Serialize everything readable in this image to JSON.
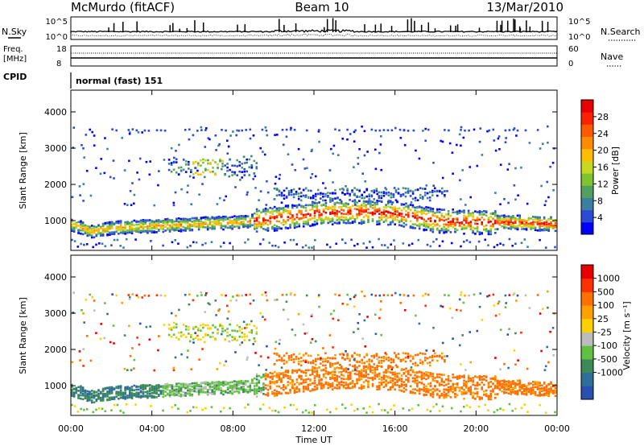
{
  "header": {
    "station": "McMurdo (fitACF)",
    "beam": "Beam 10",
    "date": "13/Mar/2010"
  },
  "noise_panel": {
    "left_label": "N.Sky",
    "right_label": "N.Search",
    "y_ticks": [
      "10^5",
      "10^0"
    ],
    "right_ticks": [
      "10^5",
      "10^0"
    ]
  },
  "freq_panel": {
    "left_label_line1": "Freq.",
    "left_label_line2": "[MHz]",
    "left_ticks": [
      "18",
      "8"
    ],
    "right_label": "Nave",
    "right_ticks": [
      "60",
      "0"
    ]
  },
  "cpid": {
    "label": "CPID",
    "value": "normal (fast) 151"
  },
  "chart_data": [
    {
      "type": "heatmap",
      "name": "Power",
      "ylabel": "Slant Range [km]",
      "ylim": [
        180,
        4600
      ],
      "y_ticks": [
        "4000",
        "3000",
        "2000",
        "1000"
      ],
      "y_tick_values": [
        4000,
        3000,
        2000,
        1000
      ],
      "xlim": [
        0,
        24
      ],
      "colorbar": {
        "label": "Power [dB]",
        "ticks": [
          "28",
          "24",
          "20",
          "16",
          "12",
          "8",
          "4"
        ],
        "tick_values": [
          28,
          24,
          20,
          16,
          12,
          8,
          4
        ],
        "range": [
          0,
          32
        ],
        "colors": [
          "#0000ff",
          "#2a4bd6",
          "#3a7ea0",
          "#52a060",
          "#7ec430",
          "#c8d820",
          "#ffbc00",
          "#ff8c00",
          "#ff5a00",
          "#ff2000",
          "#e80000"
        ]
      }
    },
    {
      "type": "heatmap",
      "name": "Velocity",
      "ylabel": "Slant Range [km]",
      "ylim": [
        180,
        4600
      ],
      "y_ticks": [
        "4000",
        "3000",
        "2000",
        "1000"
      ],
      "y_tick_values": [
        4000,
        3000,
        2000,
        1000
      ],
      "xlim": [
        0,
        24
      ],
      "colorbar": {
        "label": "Velocity [m s⁻¹]",
        "ticks": [
          "1000",
          "500",
          "100",
          "25",
          "-25",
          "-100",
          "-500",
          "-1000"
        ],
        "colors": [
          "#2850b0",
          "#2e6e9a",
          "#3c8a58",
          "#60c040",
          "#bcbcbc",
          "#ffd000",
          "#ffa000",
          "#ff7000",
          "#ff3000",
          "#e80000"
        ]
      }
    }
  ],
  "x_axis": {
    "ticks": [
      "00:00",
      "04:00",
      "08:00",
      "12:00",
      "16:00",
      "20:00",
      "00:00"
    ],
    "tick_hours": [
      0,
      4,
      8,
      12,
      16,
      20,
      24
    ],
    "label": "Time UT"
  }
}
